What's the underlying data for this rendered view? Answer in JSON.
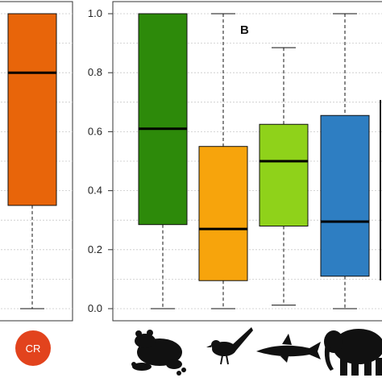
{
  "chart_data": [
    {
      "type": "box",
      "panel": "left",
      "categories": [
        "CR"
      ],
      "boxes": [
        {
          "name": "CR",
          "color": "#e8650a",
          "whisker_low": 0.0,
          "q1": 0.35,
          "median": 0.8,
          "q3": 1.0,
          "whisker_high": 1.0
        }
      ],
      "ylim": [
        0,
        1
      ],
      "grid": true
    },
    {
      "type": "box",
      "panel": "right",
      "title": "B",
      "yticks": [
        "0.0",
        "0.2",
        "0.4",
        "0.6",
        "0.8",
        "1.0"
      ],
      "ylim": [
        0,
        1
      ],
      "grid": true,
      "categories": [
        "frog-icon",
        "bird-icon",
        "shark-icon",
        "elephant-icon"
      ],
      "boxes": [
        {
          "name": "frog-icon",
          "color": "#2d8a0a",
          "whisker_low": 0.0,
          "q1": 0.285,
          "median": 0.61,
          "q3": 1.0,
          "whisker_high": 1.0
        },
        {
          "name": "bird-icon",
          "color": "#f7a40c",
          "whisker_low": 0.0,
          "q1": 0.095,
          "median": 0.27,
          "q3": 0.55,
          "whisker_high": 1.0
        },
        {
          "name": "shark-icon",
          "color": "#8fd21a",
          "whisker_low": 0.012,
          "q1": 0.28,
          "median": 0.5,
          "q3": 0.625,
          "whisker_high": 0.885
        },
        {
          "name": "elephant-icon",
          "color": "#2e7ec2",
          "whisker_low": 0.0,
          "q1": 0.11,
          "median": 0.295,
          "q3": 0.655,
          "whisker_high": 1.0
        }
      ]
    }
  ],
  "badge": {
    "label": "CR",
    "color": "#e2431d"
  }
}
